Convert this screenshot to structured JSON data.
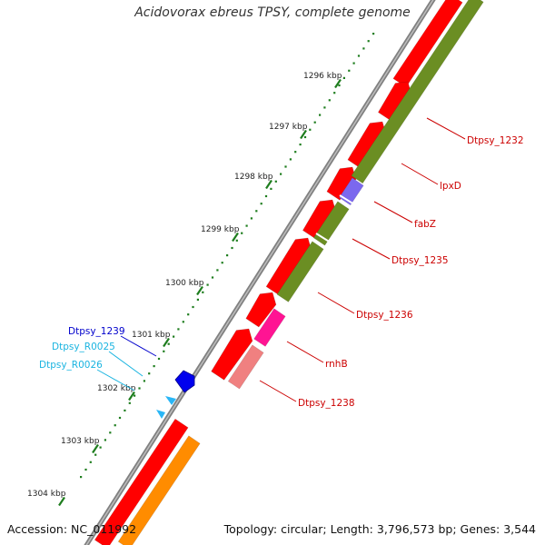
{
  "title": "Acidovorax ebreus TPSY, complete genome",
  "footer": {
    "accession": "Accession: NC_011992",
    "topology": "Topology: circular; Length: 3,796,573 bp; Genes: 3,544"
  },
  "colors": {
    "backbone": "#808080",
    "cds": "#ff0000",
    "tick": "#1e7d1e",
    "label_red": "#cc0000",
    "label_blue": "#0000cc",
    "label_cyan": "#1ab4e0"
  },
  "ruler": [
    {
      "label": "1296 kbp"
    },
    {
      "label": "1297 kbp"
    },
    {
      "label": "1298 kbp"
    },
    {
      "label": "1299 kbp"
    },
    {
      "label": "1300 kbp"
    },
    {
      "label": "1301 kbp"
    },
    {
      "label": "1302 kbp"
    },
    {
      "label": "1303 kbp"
    },
    {
      "label": "1304 kbp"
    }
  ],
  "gene_labels": [
    {
      "text": "Dtpsy_1232",
      "color": "#cc0000",
      "lane": "right"
    },
    {
      "text": "lpxD",
      "color": "#cc0000",
      "lane": "right"
    },
    {
      "text": "fabZ",
      "color": "#cc0000",
      "lane": "right"
    },
    {
      "text": "Dtpsy_1235",
      "color": "#cc0000",
      "lane": "right"
    },
    {
      "text": "Dtpsy_1236",
      "color": "#cc0000",
      "lane": "right"
    },
    {
      "text": "rnhB",
      "color": "#cc0000",
      "lane": "right"
    },
    {
      "text": "Dtpsy_1238",
      "color": "#cc0000",
      "lane": "right"
    },
    {
      "text": "Dtpsy_1239",
      "color": "#0000cc",
      "lane": "left"
    },
    {
      "text": "Dtpsy_R0025",
      "color": "#1ab4e0",
      "lane": "left"
    },
    {
      "text": "Dtpsy_R0026",
      "color": "#1ab4e0",
      "lane": "left"
    }
  ]
}
